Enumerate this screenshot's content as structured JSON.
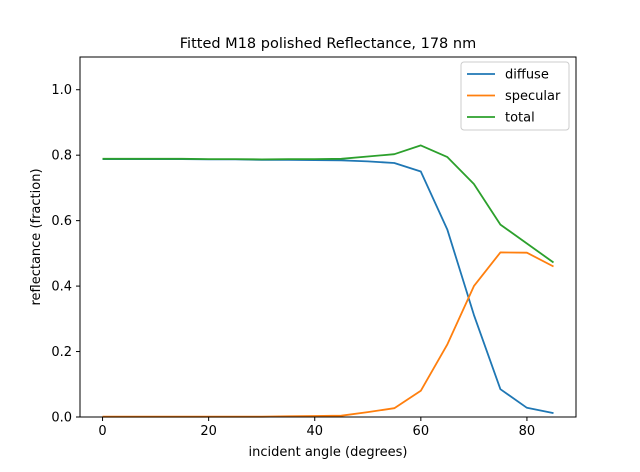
{
  "chart_data": {
    "type": "line",
    "title": "Fitted M18 polished Reflectance, 178 nm",
    "xlabel": "incident angle (degrees)",
    "ylabel": "reflectance (fraction)",
    "xlim": [
      -4.25,
      89.25
    ],
    "ylim": [
      0.0,
      1.1
    ],
    "xticks": [
      0,
      20,
      40,
      60,
      80
    ],
    "yticks": [
      0.0,
      0.2,
      0.4,
      0.6,
      0.8,
      1.0
    ],
    "xtick_labels": [
      "0",
      "20",
      "40",
      "60",
      "80"
    ],
    "ytick_labels": [
      "0.0",
      "0.2",
      "0.4",
      "0.6",
      "0.8",
      "1.0"
    ],
    "grid": false,
    "legend_position": "top-right",
    "x": [
      0,
      5,
      10,
      15,
      20,
      25,
      30,
      35,
      40,
      45,
      50,
      55,
      60,
      65,
      70,
      75,
      80,
      85
    ],
    "series": [
      {
        "name": "diffuse",
        "color": "#1f77b4",
        "values": [
          0.788,
          0.788,
          0.788,
          0.788,
          0.787,
          0.787,
          0.786,
          0.786,
          0.785,
          0.784,
          0.781,
          0.776,
          0.75,
          0.572,
          0.312,
          0.085,
          0.028,
          0.012
        ]
      },
      {
        "name": "specular",
        "color": "#ff7f0e",
        "values": [
          0.001,
          0.001,
          0.001,
          0.001,
          0.001,
          0.001,
          0.001,
          0.002,
          0.003,
          0.004,
          0.015,
          0.027,
          0.08,
          0.222,
          0.4,
          0.503,
          0.502,
          0.46
        ]
      },
      {
        "name": "total",
        "color": "#2ca02c",
        "values": [
          0.789,
          0.789,
          0.789,
          0.789,
          0.788,
          0.788,
          0.787,
          0.788,
          0.788,
          0.789,
          0.796,
          0.803,
          0.83,
          0.794,
          0.712,
          0.588,
          0.53,
          0.472
        ]
      }
    ]
  }
}
